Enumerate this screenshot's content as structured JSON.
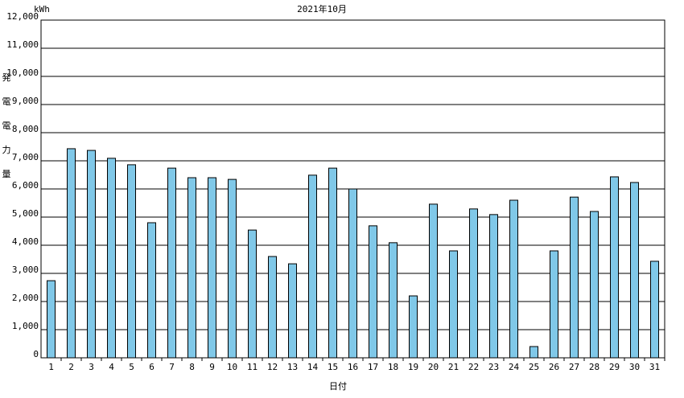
{
  "chart_data": {
    "type": "bar",
    "title": "2021年10月",
    "unit": "kWh",
    "y_label": "発電電力量",
    "x_label": "日付",
    "categories": [
      "1",
      "2",
      "3",
      "4",
      "5",
      "6",
      "7",
      "8",
      "9",
      "10",
      "11",
      "12",
      "13",
      "14",
      "15",
      "16",
      "17",
      "18",
      "19",
      "20",
      "21",
      "22",
      "23",
      "24",
      "25",
      "26",
      "27",
      "28",
      "29",
      "30",
      "31"
    ],
    "values": [
      2740,
      7430,
      7370,
      7090,
      6860,
      4800,
      6740,
      6400,
      6400,
      6340,
      4540,
      3600,
      3340,
      6490,
      6740,
      6000,
      4690,
      4090,
      2200,
      5460,
      3800,
      5290,
      5090,
      5600,
      400,
      3800,
      5710,
      5200,
      6430,
      6230,
      3430
    ],
    "color": "#80c8e8",
    "ylim": [
      0,
      12000
    ],
    "yticks": [
      0,
      {
        "value": 1000,
        "label": "1,000"
      },
      {
        "value": 2000,
        "label": "2,000"
      },
      {
        "value": 3000,
        "label": "3,000"
      },
      {
        "value": 4000,
        "label": "4,000"
      },
      {
        "value": 5000,
        "label": "5,000"
      },
      {
        "value": 6000,
        "label": "6,000"
      },
      {
        "value": 7000,
        "label": "7,000"
      },
      {
        "value": 8000,
        "label": "8,000"
      },
      {
        "value": 9000,
        "label": "9,000"
      },
      {
        "value": 10000,
        "label": "10,000"
      },
      {
        "value": 11000,
        "label": "11,000"
      },
      {
        "value": 12000,
        "label": "12,000"
      }
    ],
    "grid": true
  }
}
